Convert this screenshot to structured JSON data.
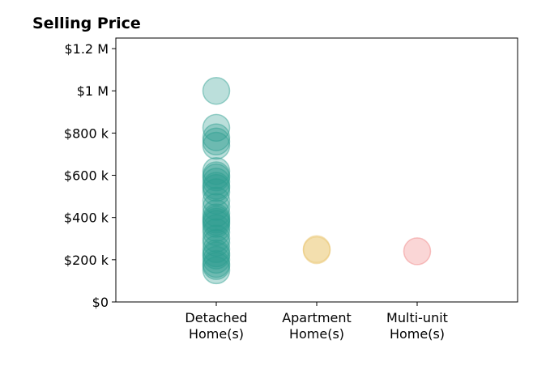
{
  "chart_data": {
    "type": "scatter",
    "title": "Selling Price",
    "xlabel": "",
    "ylabel": "",
    "categories": [
      [
        "Detached",
        "Home(s)"
      ],
      [
        "Apartment",
        "Home(s)"
      ],
      [
        "Multi-unit",
        "Home(s)"
      ]
    ],
    "y_ticks": [
      0,
      200000,
      400000,
      600000,
      800000,
      1000000,
      1200000
    ],
    "y_tick_labels": [
      "$0",
      "$200 k",
      "$400 k",
      "$600 k",
      "$800 k",
      "$1 M",
      "$1.2 M"
    ],
    "ylim": [
      0,
      1250000
    ],
    "grid": false,
    "colors": [
      "#2a9d8f",
      "#e9c46a",
      "#f08080"
    ],
    "series": [
      {
        "category": 0,
        "values": [
          1000000,
          825000,
          780000,
          760000,
          740000,
          620000,
          600000,
          590000,
          570000,
          550000,
          540000,
          520000,
          480000,
          450000,
          420000,
          400000,
          390000,
          380000,
          370000,
          350000,
          330000,
          300000,
          280000,
          250000,
          230000,
          220000,
          200000,
          180000,
          170000,
          150000
        ]
      },
      {
        "category": 1,
        "values": [
          250000,
          245000
        ]
      },
      {
        "category": 2,
        "values": [
          240000
        ]
      }
    ]
  }
}
